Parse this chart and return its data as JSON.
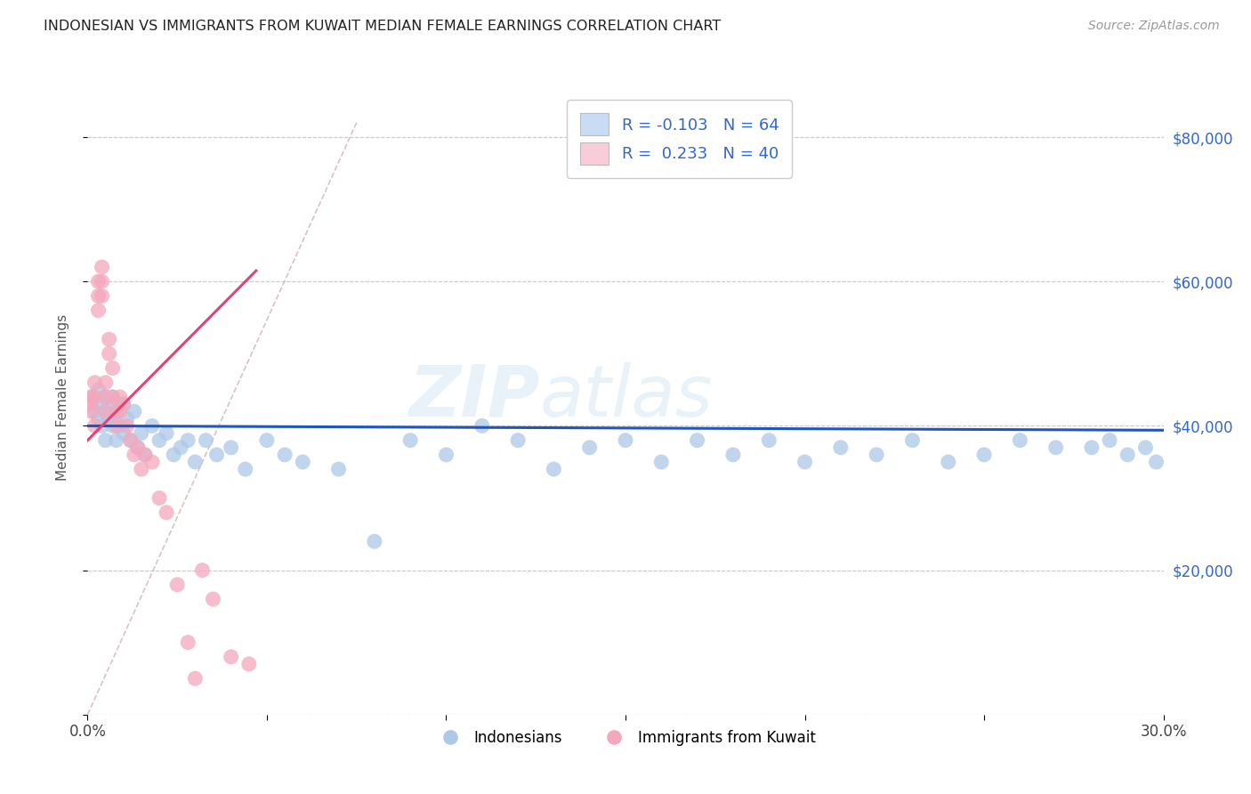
{
  "title": "INDONESIAN VS IMMIGRANTS FROM KUWAIT MEDIAN FEMALE EARNINGS CORRELATION CHART",
  "source": "Source: ZipAtlas.com",
  "ylabel": "Median Female Earnings",
  "xlim": [
    0.0,
    0.3
  ],
  "ylim": [
    0,
    88000
  ],
  "ytick_positions": [
    0,
    20000,
    40000,
    60000,
    80000
  ],
  "ytick_labels": [
    "",
    "$20,000",
    "$40,000",
    "$60,000",
    "$80,000"
  ],
  "xtick_positions": [
    0.0,
    0.05,
    0.1,
    0.15,
    0.2,
    0.25,
    0.3
  ],
  "xtick_labels": [
    "0.0%",
    "",
    "",
    "",
    "",
    "",
    "30.0%"
  ],
  "legend1_label": "R = -0.103   N = 64",
  "legend2_label": "R =  0.233   N = 40",
  "series1_color": "#adc8e8",
  "series2_color": "#f4a8bc",
  "line1_color": "#2255bb",
  "line2_color": "#dd4477",
  "diagonal_color": "#d4b8b8",
  "watermark_text": "ZIPatlas",
  "watermark_color": "#88bbdd",
  "legend_box_color1": "#c8dcf5",
  "legend_box_color2": "#f8ccd8",
  "legend_text_color": "#3366cc",
  "bottom_legend_color1": "#adc8e8",
  "bottom_legend_color2": "#f4a8bc",
  "indonesian_x": [
    0.001,
    0.002,
    0.003,
    0.003,
    0.004,
    0.004,
    0.005,
    0.005,
    0.005,
    0.006,
    0.006,
    0.007,
    0.007,
    0.008,
    0.008,
    0.009,
    0.01,
    0.01,
    0.011,
    0.012,
    0.013,
    0.014,
    0.015,
    0.016,
    0.018,
    0.02,
    0.022,
    0.024,
    0.026,
    0.028,
    0.03,
    0.033,
    0.036,
    0.04,
    0.044,
    0.05,
    0.055,
    0.06,
    0.07,
    0.08,
    0.09,
    0.1,
    0.11,
    0.12,
    0.13,
    0.14,
    0.15,
    0.16,
    0.17,
    0.18,
    0.19,
    0.2,
    0.21,
    0.22,
    0.23,
    0.24,
    0.25,
    0.26,
    0.27,
    0.28,
    0.285,
    0.29,
    0.295,
    0.298
  ],
  "indonesian_y": [
    44000,
    42000,
    45000,
    41000,
    43000,
    40000,
    44000,
    42000,
    38000,
    43000,
    41000,
    40000,
    44000,
    38000,
    42000,
    40000,
    39000,
    43000,
    41000,
    38000,
    42000,
    37000,
    39000,
    36000,
    40000,
    38000,
    39000,
    36000,
    37000,
    38000,
    35000,
    38000,
    36000,
    37000,
    34000,
    38000,
    36000,
    35000,
    34000,
    24000,
    38000,
    36000,
    40000,
    38000,
    34000,
    37000,
    38000,
    35000,
    38000,
    36000,
    38000,
    35000,
    37000,
    36000,
    38000,
    35000,
    36000,
    38000,
    37000,
    37000,
    38000,
    36000,
    37000,
    35000
  ],
  "kuwait_x": [
    0.001,
    0.001,
    0.001,
    0.002,
    0.002,
    0.002,
    0.003,
    0.003,
    0.003,
    0.004,
    0.004,
    0.004,
    0.005,
    0.005,
    0.005,
    0.006,
    0.006,
    0.007,
    0.007,
    0.008,
    0.008,
    0.009,
    0.009,
    0.01,
    0.011,
    0.012,
    0.013,
    0.014,
    0.015,
    0.016,
    0.018,
    0.02,
    0.022,
    0.025,
    0.028,
    0.03,
    0.032,
    0.035,
    0.04,
    0.045
  ],
  "kuwait_y": [
    43000,
    44000,
    42000,
    44000,
    46000,
    40000,
    58000,
    60000,
    56000,
    60000,
    62000,
    58000,
    42000,
    44000,
    46000,
    50000,
    52000,
    44000,
    48000,
    40000,
    42000,
    44000,
    42000,
    43000,
    40000,
    38000,
    36000,
    37000,
    34000,
    36000,
    35000,
    30000,
    28000,
    18000,
    10000,
    5000,
    20000,
    16000,
    8000,
    7000
  ]
}
